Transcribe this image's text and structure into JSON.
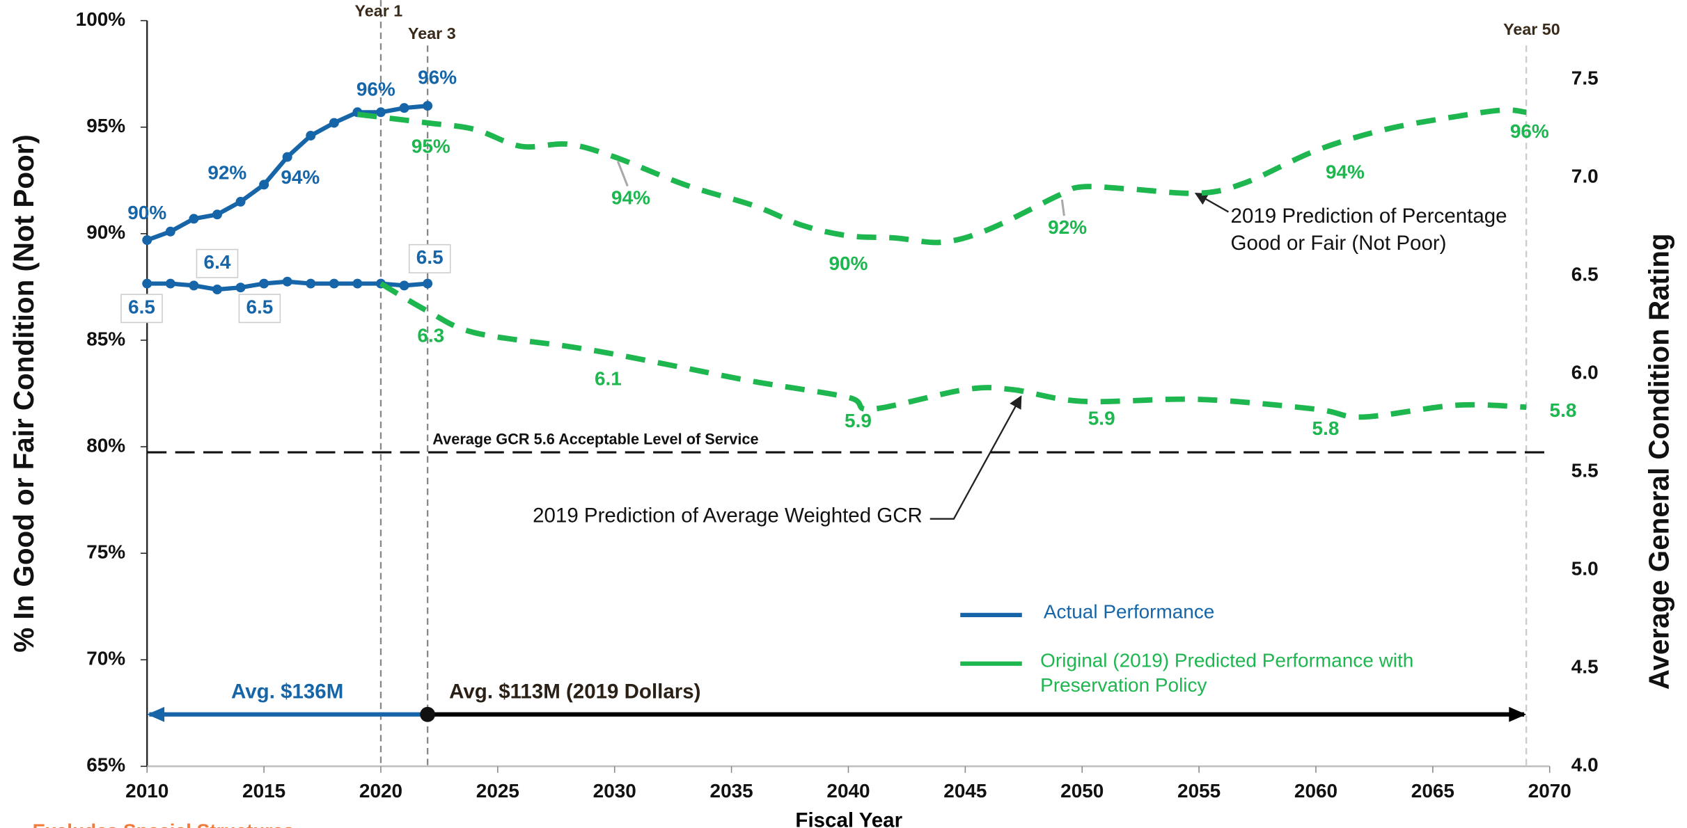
{
  "chart_data": {
    "type": "line",
    "y_label": "% In Good or Fair Condition (Not Poor)",
    "y2_label": "Average General Condition Rating",
    "x_label": "Fiscal Year",
    "xlim": [
      2010,
      2070
    ],
    "xticks": [
      2010,
      2015,
      2020,
      2025,
      2030,
      2035,
      2040,
      2045,
      2050,
      2055,
      2060,
      2065,
      2070
    ],
    "ylim": [
      65,
      100
    ],
    "yticks": [
      {
        "value": 65,
        "label": "65%"
      },
      {
        "value": 70,
        "label": "70%"
      },
      {
        "value": 75,
        "label": "75%"
      },
      {
        "value": 80,
        "label": "80%"
      },
      {
        "value": 85,
        "label": "85%"
      },
      {
        "value": 90,
        "label": "90%"
      },
      {
        "value": 95,
        "label": "95%"
      },
      {
        "value": 100,
        "label": "100%"
      }
    ],
    "y2lim": [
      4,
      7.8
    ],
    "y2ticks": [
      {
        "value": 4,
        "label": "4.0"
      },
      4.5,
      {
        "value": 5,
        "label": "5.0"
      },
      5.5,
      {
        "value": 6,
        "label": "6.0"
      },
      6.5,
      {
        "value": 7,
        "label": "7.0"
      },
      7.5
    ],
    "series": [
      {
        "color": "#1565a8",
        "style": "solid",
        "markers": true,
        "axis": "y",
        "x": [
          2010,
          2011,
          2012,
          2013,
          2014,
          2015,
          2016,
          2017,
          2018,
          2019,
          2020,
          2021,
          2022
        ],
        "values": [
          89.7,
          90.1,
          90.7,
          90.9,
          91.5,
          92.3,
          93.6,
          94.6,
          95.2,
          95.7,
          95.7,
          95.9,
          96.0
        ],
        "value_labels": [
          "90%",
          null,
          null,
          null,
          null,
          "92%",
          "94%",
          null,
          null,
          "96%",
          null,
          null,
          "96%"
        ]
      },
      {
        "color": "#1565a8",
        "style": "solid",
        "markers": true,
        "axis": "y2",
        "x": [
          2010,
          2011,
          2012,
          2013,
          2014,
          2015,
          2016,
          2017,
          2018,
          2019,
          2020,
          2021,
          2022
        ],
        "values": [
          6.46,
          6.46,
          6.45,
          6.43,
          6.44,
          6.46,
          6.47,
          6.46,
          6.46,
          6.46,
          6.46,
          6.45,
          6.46
        ],
        "value_labels": [
          "6.5",
          null,
          null,
          "6.4",
          null,
          "6.5",
          null,
          null,
          null,
          null,
          null,
          null,
          "6.5"
        ]
      },
      {
        "color": "#1db64f",
        "style": "dashed",
        "markers": false,
        "axis": "y",
        "x": [
          2019,
          2022,
          2024,
          2026,
          2028,
          2030,
          2033,
          2036,
          2038,
          2040,
          2042,
          2044,
          2046,
          2049,
          2050,
          2052,
          2055,
          2057,
          2060,
          2063,
          2066,
          2068,
          2069
        ],
        "values": [
          95.6,
          95.2,
          94.9,
          94.1,
          94.2,
          93.6,
          92.3,
          91.3,
          90.4,
          89.9,
          89.8,
          89.6,
          90.2,
          91.8,
          92.2,
          92.1,
          91.9,
          92.4,
          93.9,
          94.9,
          95.5,
          95.8,
          95.7
        ],
        "value_labels": [
          null,
          "95%",
          null,
          null,
          null,
          "94%",
          null,
          null,
          null,
          "90%",
          null,
          null,
          null,
          "92%",
          null,
          null,
          null,
          null,
          "94%",
          null,
          null,
          null,
          "96%"
        ]
      },
      {
        "color": "#1db64f",
        "style": "dashed",
        "markers": false,
        "axis": "y2",
        "x": [
          2020,
          2022,
          2024,
          2028,
          2030,
          2033,
          2036,
          2040,
          2041,
          2045,
          2047,
          2050,
          2055,
          2060,
          2062,
          2066,
          2069
        ],
        "values": [
          6.46,
          6.32,
          6.21,
          6.14,
          6.1,
          6.03,
          5.96,
          5.88,
          5.82,
          5.92,
          5.92,
          5.86,
          5.87,
          5.82,
          5.78,
          5.84,
          5.83
        ],
        "value_labels": [
          null,
          "6.3",
          null,
          null,
          "6.1",
          null,
          null,
          "5.9",
          null,
          null,
          null,
          "5.9",
          null,
          "5.8",
          null,
          null,
          "5.8"
        ]
      }
    ],
    "legend": [
      {
        "name": "Actual Performance",
        "color": "#1565a8"
      },
      {
        "name": "Original (2019) Predicted Performance with Preservation Policy",
        "color": "#1db64f"
      }
    ],
    "milestones": [
      {
        "x": 2020,
        "label": "Year 1"
      },
      {
        "x": 2022,
        "label": "Year 3"
      },
      {
        "x": 2069,
        "label": "Year 50"
      }
    ],
    "threshold": {
      "value": 5.6,
      "axis": "y2",
      "label": "Average GCR 5.6 Acceptable Level of Service"
    },
    "spending": [
      {
        "from": 2010,
        "to": 2022,
        "label": "Avg. $136M",
        "color": "#1565a8"
      },
      {
        "from": 2022,
        "to": 2069,
        "label": "Avg. $113M (2019 Dollars)",
        "color": "#000000"
      }
    ],
    "annotations": [
      "2019 Prediction of Percentage Good or Fair (Not Poor)",
      "2019 Prediction of Average Weighted GCR"
    ],
    "footnote": "Excludes Special Structures"
  }
}
